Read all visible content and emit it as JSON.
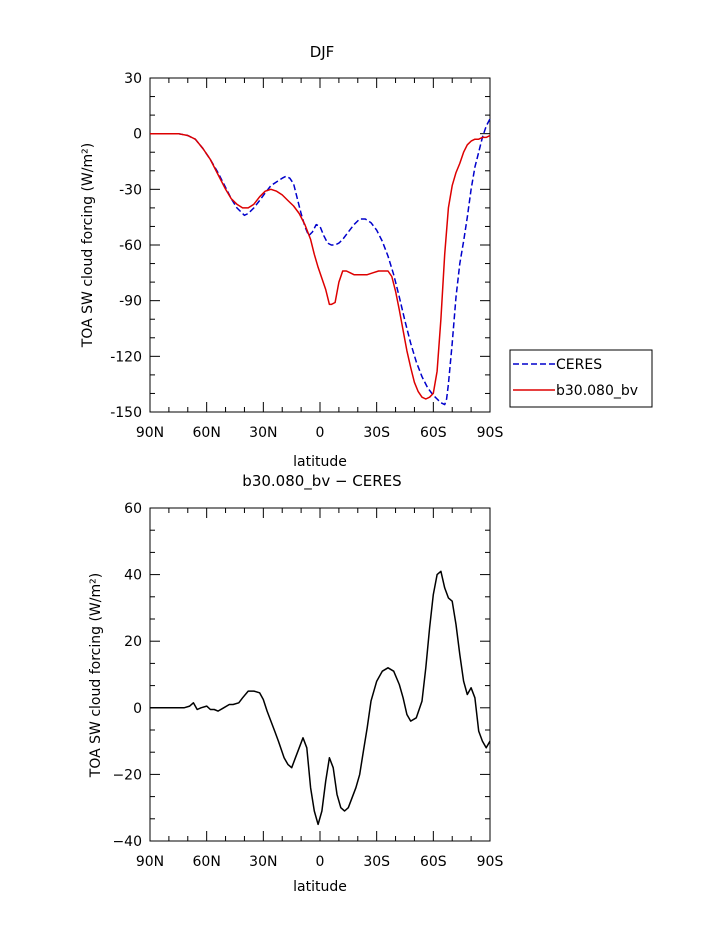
{
  "chart_data": [
    {
      "type": "line",
      "title": "DJF",
      "xlabel": "latitude",
      "ylabel": "TOA SW cloud forcing (W/m²)",
      "xlim": [
        -90,
        90
      ],
      "ylim": [
        -150,
        30
      ],
      "x_ticks": [
        -90,
        -60,
        -30,
        0,
        30,
        60,
        90
      ],
      "x_tick_labels": [
        "90N",
        "60N",
        "30N",
        "0",
        "30S",
        "60S",
        "90S"
      ],
      "y_ticks": [
        -150,
        -120,
        -90,
        -60,
        -30,
        0,
        30
      ],
      "y_tick_labels": [
        "-150",
        "-120",
        "-90",
        "-60",
        "-30",
        "0",
        "30"
      ],
      "legend_position": "outside-right",
      "grid": false,
      "series": [
        {
          "name": "CERES",
          "color": "#0000cc",
          "dash": "dashed",
          "x": [
            -90,
            -80,
            -75,
            -70,
            -66,
            -62,
            -58,
            -54,
            -50,
            -47,
            -44,
            -42,
            -40,
            -38,
            -35,
            -32,
            -29,
            -26,
            -23,
            -20,
            -18,
            -16,
            -14,
            -12,
            -10,
            -8,
            -6,
            -4,
            -2,
            0,
            2,
            4,
            6,
            8,
            10,
            12,
            15,
            18,
            21,
            24,
            27,
            30,
            33,
            36,
            39,
            42,
            45,
            48,
            51,
            54,
            57,
            60,
            62,
            64,
            66,
            67,
            68,
            70,
            72,
            74,
            76,
            78,
            80,
            82,
            84,
            86,
            88,
            90
          ],
          "y": [
            0,
            0,
            0,
            -1,
            -3,
            -8,
            -14,
            -21,
            -29,
            -35,
            -40,
            -42,
            -44,
            -43,
            -40,
            -36,
            -32,
            -28,
            -26,
            -24,
            -23,
            -24,
            -27,
            -35,
            -43,
            -50,
            -55,
            -53,
            -49,
            -50,
            -55,
            -59,
            -60,
            -60,
            -59,
            -57,
            -53,
            -49,
            -46,
            -46,
            -48,
            -52,
            -58,
            -66,
            -76,
            -88,
            -101,
            -113,
            -123,
            -131,
            -137,
            -141,
            -143,
            -145,
            -146,
            -143,
            -135,
            -113,
            -88,
            -70,
            -58,
            -45,
            -30,
            -18,
            -10,
            -2,
            4,
            8
          ]
        },
        {
          "name": "b30.080_bv",
          "color": "#dd0000",
          "dash": "solid",
          "x": [
            -90,
            -80,
            -75,
            -70,
            -66,
            -62,
            -58,
            -54,
            -50,
            -47,
            -44,
            -41,
            -38,
            -35,
            -32,
            -29,
            -26,
            -23,
            -20,
            -17,
            -14,
            -11,
            -8,
            -5,
            -3,
            -1,
            1,
            3,
            5,
            6,
            8,
            10,
            12,
            14,
            16,
            18,
            20,
            22,
            25,
            28,
            31,
            34,
            36,
            38,
            40,
            42,
            44,
            46,
            48,
            50,
            52,
            54,
            56,
            58,
            60,
            62,
            64,
            66,
            68,
            70,
            72,
            74,
            76,
            78,
            80,
            82,
            84,
            86,
            88,
            90
          ],
          "y": [
            0,
            0,
            0,
            -1,
            -3,
            -8,
            -14,
            -22,
            -30,
            -35,
            -38,
            -40,
            -40,
            -38,
            -34,
            -31,
            -30,
            -31,
            -33,
            -36,
            -39,
            -43,
            -49,
            -57,
            -65,
            -72,
            -78,
            -84,
            -92,
            -92,
            -91,
            -80,
            -74,
            -74,
            -75,
            -76,
            -76,
            -76,
            -76,
            -75,
            -74,
            -74,
            -74,
            -77,
            -85,
            -95,
            -106,
            -117,
            -126,
            -134,
            -139,
            -142,
            -143,
            -142,
            -140,
            -128,
            -100,
            -65,
            -40,
            -28,
            -21,
            -16,
            -10,
            -6,
            -4,
            -3,
            -3,
            -2,
            -2,
            -1
          ]
        }
      ]
    },
    {
      "type": "line",
      "title": "b30.080_bv − CERES",
      "xlabel": "latitude",
      "ylabel": "TOA SW cloud forcing (W/m²)",
      "xlim": [
        -90,
        90
      ],
      "ylim": [
        -40,
        60
      ],
      "x_ticks": [
        -90,
        -60,
        -30,
        0,
        30,
        60,
        90
      ],
      "x_tick_labels": [
        "90N",
        "60N",
        "30N",
        "0",
        "30S",
        "60S",
        "90S"
      ],
      "y_ticks": [
        -40,
        -20,
        0,
        20,
        40,
        60
      ],
      "y_tick_labels": [
        "−40",
        "−20",
        "0",
        "20",
        "40",
        "60"
      ],
      "grid": false,
      "series": [
        {
          "color": "#000000",
          "dash": "solid",
          "x": [
            -90,
            -81,
            -76,
            -72,
            -69,
            -67,
            -65,
            -63,
            -60,
            -58,
            -56,
            -54,
            -51,
            -48,
            -46,
            -43,
            -41,
            -38,
            -35,
            -32,
            -30,
            -28,
            -26,
            -24,
            -22,
            -19,
            -17,
            -15,
            -13,
            -11,
            -9,
            -7,
            -5,
            -3,
            -1,
            1,
            3,
            5,
            7,
            9,
            11,
            13,
            15,
            17,
            19,
            21,
            23,
            25,
            27,
            30,
            33,
            36,
            39,
            42,
            44,
            46,
            48,
            51,
            54,
            56,
            58,
            60,
            62,
            64,
            66,
            68,
            70,
            72,
            74,
            76,
            78,
            80,
            82,
            84,
            86,
            88,
            90
          ],
          "y": [
            0,
            0,
            0,
            0,
            0.5,
            1.5,
            -0.5,
            0,
            0.5,
            -0.5,
            -0.5,
            -1,
            0,
            1,
            1,
            1.5,
            3,
            5,
            5,
            4.5,
            2.5,
            -1,
            -4,
            -7,
            -10,
            -15,
            -17,
            -18,
            -15,
            -12,
            -9,
            -12,
            -24,
            -31,
            -35,
            -31,
            -22,
            -15,
            -18,
            -26,
            -30,
            -31,
            -30,
            -27,
            -24,
            -20,
            -13,
            -6,
            2,
            8,
            11,
            12,
            11,
            7,
            3,
            -2,
            -4,
            -3,
            2,
            12,
            24,
            34,
            40,
            41,
            36,
            33,
            32,
            25,
            16,
            8,
            4,
            6,
            3,
            -7,
            -10,
            -12,
            -10
          ]
        }
      ]
    }
  ]
}
